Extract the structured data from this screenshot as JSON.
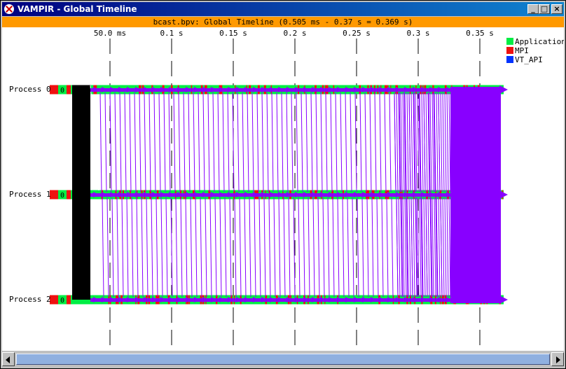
{
  "window": {
    "title": "VAMPIR - Global Timeline",
    "subtitle": "bcast.bpv: Global Timeline (0.505 ms - 0.37 s = 0.369 s)",
    "buttons": [
      "minimize",
      "maximize",
      "close"
    ]
  },
  "axis": {
    "ticks": [
      "50.0 ms",
      "0.1 s",
      "0.15 s",
      "0.2 s",
      "0.25 s",
      "0.3 s",
      "0.35 s"
    ]
  },
  "legend": [
    {
      "label": "Application",
      "color": "#00ee44"
    },
    {
      "label": "MPI",
      "color": "#ee1111"
    },
    {
      "label": "VT_API",
      "color": "#0033ff"
    }
  ],
  "processes": [
    {
      "label": "Process 0",
      "marker": "0"
    },
    {
      "label": "Process 1",
      "marker": "0"
    },
    {
      "label": "Process 2",
      "marker": "0"
    }
  ],
  "colors": {
    "message": "#8800ff",
    "application": "#00ee44",
    "mpi": "#ee1111",
    "collective_block": "#000000",
    "orange_header": "#ff9900"
  }
}
